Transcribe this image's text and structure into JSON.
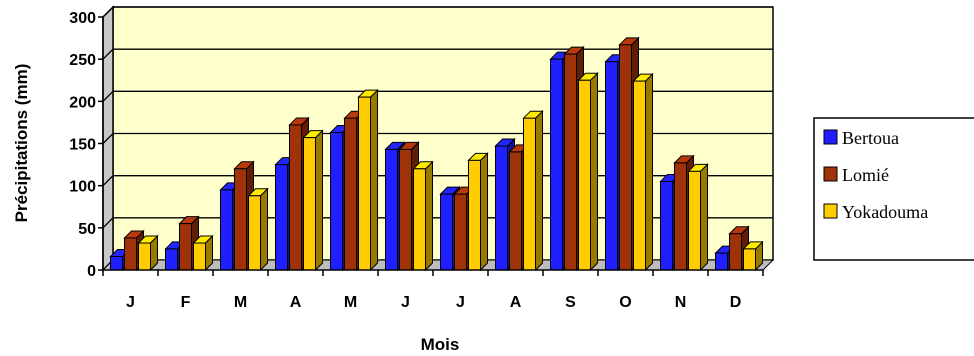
{
  "chart_data": {
    "type": "bar",
    "style": "3d-clustered-column",
    "categories": [
      "J",
      "F",
      "M",
      "A",
      "M",
      "J",
      "J",
      "A",
      "S",
      "O",
      "N",
      "D"
    ],
    "series": [
      {
        "name": "Bertoua",
        "color": "#1f1fff",
        "values": [
          16,
          25,
          95,
          125,
          163,
          143,
          90,
          147,
          250,
          247,
          105,
          20
        ]
      },
      {
        "name": "Lomié",
        "color": "#a0320a",
        "values": [
          38,
          55,
          120,
          172,
          180,
          143,
          90,
          140,
          256,
          267,
          127,
          43
        ]
      },
      {
        "name": "Yokadouma",
        "color": "#ffcc00",
        "values": [
          32,
          32,
          88,
          157,
          205,
          120,
          130,
          180,
          225,
          224,
          117,
          25
        ]
      }
    ],
    "xlabel": "Mois",
    "ylabel": "Précipitations (mm)",
    "yticks": [
      "0",
      "50",
      "100",
      "150",
      "200",
      "250",
      "300"
    ],
    "ylim": [
      0,
      300
    ],
    "grid": true,
    "plot_background": "#ffffcc",
    "legend_position": "right"
  }
}
